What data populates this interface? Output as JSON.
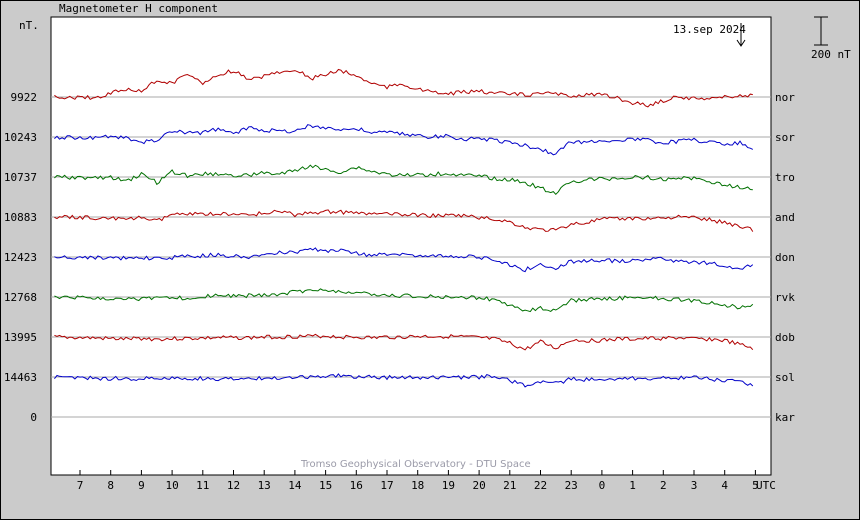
{
  "chart_data": {
    "type": "line",
    "title": "Magnetometer H component",
    "ylabel": "nT.",
    "date_label": "13.sep 2024",
    "scale_label": "200 nT",
    "x_unit_label": "UTC",
    "watermark": "Tromso Geophysical Observatory - DTU Space",
    "x_tick_labels": [
      "7",
      "8",
      "9",
      "10",
      "11",
      "12",
      "13",
      "14",
      "15",
      "16",
      "17",
      "18",
      "19",
      "20",
      "21",
      "22",
      "23",
      "0",
      "1",
      "2",
      "3",
      "4",
      "5"
    ],
    "baseline_values": [
      "9922",
      "10243",
      "10737",
      "10883",
      "12423",
      "12768",
      "13995",
      "14463",
      "0"
    ],
    "stations": [
      "nor",
      "sor",
      "tro",
      "and",
      "don",
      "rvk",
      "dob",
      "sol",
      "kar"
    ],
    "series_colors": [
      "#b00000",
      "#0000c8",
      "#007000",
      "#b00000",
      "#0000c8",
      "#007000",
      "#b00000",
      "#0000c8",
      "#000000"
    ],
    "grid": true,
    "series": [
      {
        "name": "nor",
        "start_hour": 6.0,
        "step_hours": 0.5,
        "values": [
          0,
          -2,
          -4,
          -6,
          30,
          55,
          40,
          120,
          100,
          170,
          90,
          160,
          190,
          120,
          150,
          180,
          200,
          130,
          160,
          190,
          150,
          100,
          70,
          95,
          55,
          30,
          25,
          35,
          40,
          30,
          20,
          15,
          25,
          20,
          10,
          20,
          15,
          -10,
          -40,
          -60,
          -25,
          0,
          -10,
          -5,
          0,
          10,
          5,
          0,
          -5,
          -10,
          -25,
          -35,
          -10,
          -60,
          -40,
          0,
          -25,
          -30,
          -50,
          -75,
          -35,
          -60,
          -30
        ]
      },
      {
        "name": "sor",
        "start_hour": 6.0,
        "step_hours": 0.5,
        "values": [
          0,
          -2,
          -5,
          -3,
          5,
          -10,
          -40,
          -20,
          40,
          30,
          30,
          60,
          20,
          70,
          50,
          40,
          45,
          80,
          70,
          50,
          60,
          30,
          35,
          20,
          10,
          0,
          5,
          -15,
          -10,
          -20,
          -40,
          -60,
          -90,
          -120,
          -30,
          -40,
          -20,
          -30,
          -15,
          -25,
          -40,
          -30,
          -20,
          -35,
          -50,
          -40,
          -90,
          -50,
          -60,
          -40,
          -60,
          -75,
          -30,
          -40,
          -25,
          -55,
          -40,
          -30,
          -5,
          -35,
          -60,
          -40,
          -35
        ]
      },
      {
        "name": "tro",
        "start_hour": 6.0,
        "step_hours": 0.5,
        "values": [
          0,
          -2,
          -3,
          -6,
          -5,
          -30,
          20,
          -40,
          40,
          10,
          20,
          25,
          10,
          15,
          30,
          20,
          45,
          80,
          50,
          35,
          70,
          40,
          20,
          10,
          15,
          20,
          25,
          10,
          5,
          -10,
          -20,
          -40,
          -80,
          -110,
          -35,
          -20,
          -15,
          -10,
          -5,
          0,
          -20,
          -5,
          -10,
          -30,
          -60,
          -70,
          -100,
          -70,
          -60,
          -50,
          -25,
          -55,
          -40,
          -30,
          -30,
          -50,
          -10,
          -40,
          -10,
          -30,
          -60,
          -40,
          -45
        ]
      },
      {
        "name": "and",
        "start_hour": 6.0,
        "step_hours": 0.5,
        "values": [
          0,
          -1,
          -2,
          -5,
          -5,
          -20,
          0,
          -30,
          20,
          15,
          25,
          20,
          15,
          20,
          25,
          45,
          15,
          30,
          40,
          35,
          25,
          25,
          20,
          15,
          15,
          10,
          10,
          10,
          -5,
          -15,
          -35,
          -75,
          -90,
          -95,
          -50,
          -40,
          -15,
          -15,
          -10,
          -10,
          -5,
          0,
          -5,
          -20,
          -40,
          -65,
          -95,
          -80,
          -60,
          -40,
          -30,
          -30,
          -20,
          -25,
          -25,
          -40,
          -30,
          -30,
          -10,
          -35,
          -45,
          -40,
          -35
        ]
      },
      {
        "name": "don",
        "start_hour": 6.0,
        "step_hours": 0.5,
        "values": [
          0,
          -2,
          -4,
          -6,
          -7,
          -10,
          -8,
          -10,
          -5,
          5,
          10,
          15,
          5,
          0,
          10,
          30,
          35,
          55,
          45,
          50,
          30,
          10,
          20,
          15,
          15,
          10,
          10,
          5,
          0,
          -25,
          -55,
          -90,
          -55,
          -80,
          -30,
          -30,
          -20,
          -30,
          -25,
          -20,
          -15,
          -30,
          -40,
          -45,
          -60,
          -80,
          -45,
          -60,
          -75,
          -40,
          -40,
          -50,
          -30,
          -30,
          -35,
          -45,
          -40,
          -25,
          -30,
          -25,
          -35,
          -40,
          -35
        ]
      },
      {
        "name": "rvk",
        "start_hour": 6.0,
        "step_hours": 0.5,
        "values": [
          0,
          -2,
          -5,
          -8,
          -10,
          -8,
          -15,
          -5,
          -10,
          -5,
          0,
          15,
          5,
          10,
          10,
          15,
          40,
          45,
          50,
          35,
          30,
          15,
          10,
          10,
          5,
          5,
          0,
          0,
          -5,
          -20,
          -60,
          -100,
          -80,
          -100,
          -25,
          -20,
          -10,
          -10,
          -5,
          -5,
          -15,
          -20,
          -30,
          -40,
          -55,
          -80,
          -55,
          -95,
          -80,
          -70,
          -40,
          -75,
          -50,
          -40,
          -30,
          -55,
          -25,
          -35,
          -30,
          -20,
          -25,
          -30,
          -25
        ]
      },
      {
        "name": "dob",
        "start_hour": 6.0,
        "step_hours": 0.5,
        "values": [
          0,
          -2,
          -5,
          -8,
          -12,
          -15,
          -10,
          -15,
          -12,
          -10,
          -8,
          -5,
          -5,
          -5,
          0,
          0,
          5,
          5,
          8,
          0,
          0,
          -5,
          0,
          0,
          5,
          5,
          5,
          0,
          -5,
          -15,
          -45,
          -90,
          -35,
          -80,
          -20,
          -25,
          -25,
          -15,
          -15,
          -10,
          -10,
          -5,
          -15,
          -15,
          -25,
          -55,
          -85,
          -40,
          -50,
          -40,
          -30,
          -25,
          -25,
          -25,
          -20,
          -20,
          -15,
          -15,
          -15,
          -15,
          -15,
          -18,
          -15
        ]
      },
      {
        "name": "sol",
        "start_hour": 6.0,
        "step_hours": 0.5,
        "values": [
          0,
          -3,
          -6,
          -8,
          -10,
          -12,
          -12,
          -12,
          -10,
          -10,
          -10,
          -15,
          -10,
          -10,
          -8,
          -5,
          -3,
          0,
          5,
          10,
          -3,
          0,
          -3,
          -5,
          -5,
          -5,
          -5,
          -5,
          0,
          10,
          -25,
          -60,
          -30,
          -45,
          -15,
          -20,
          -20,
          -15,
          -10,
          -10,
          -10,
          -5,
          -5,
          -15,
          -25,
          -35,
          -70,
          -45,
          -40,
          -30,
          -30,
          -25,
          -25,
          -20,
          -15,
          -15,
          -20,
          -15,
          -20,
          -15,
          -20,
          -20,
          -15
        ]
      },
      {
        "name": "kar",
        "start_hour": 6.0,
        "step_hours": 0.5,
        "values": []
      }
    ]
  }
}
